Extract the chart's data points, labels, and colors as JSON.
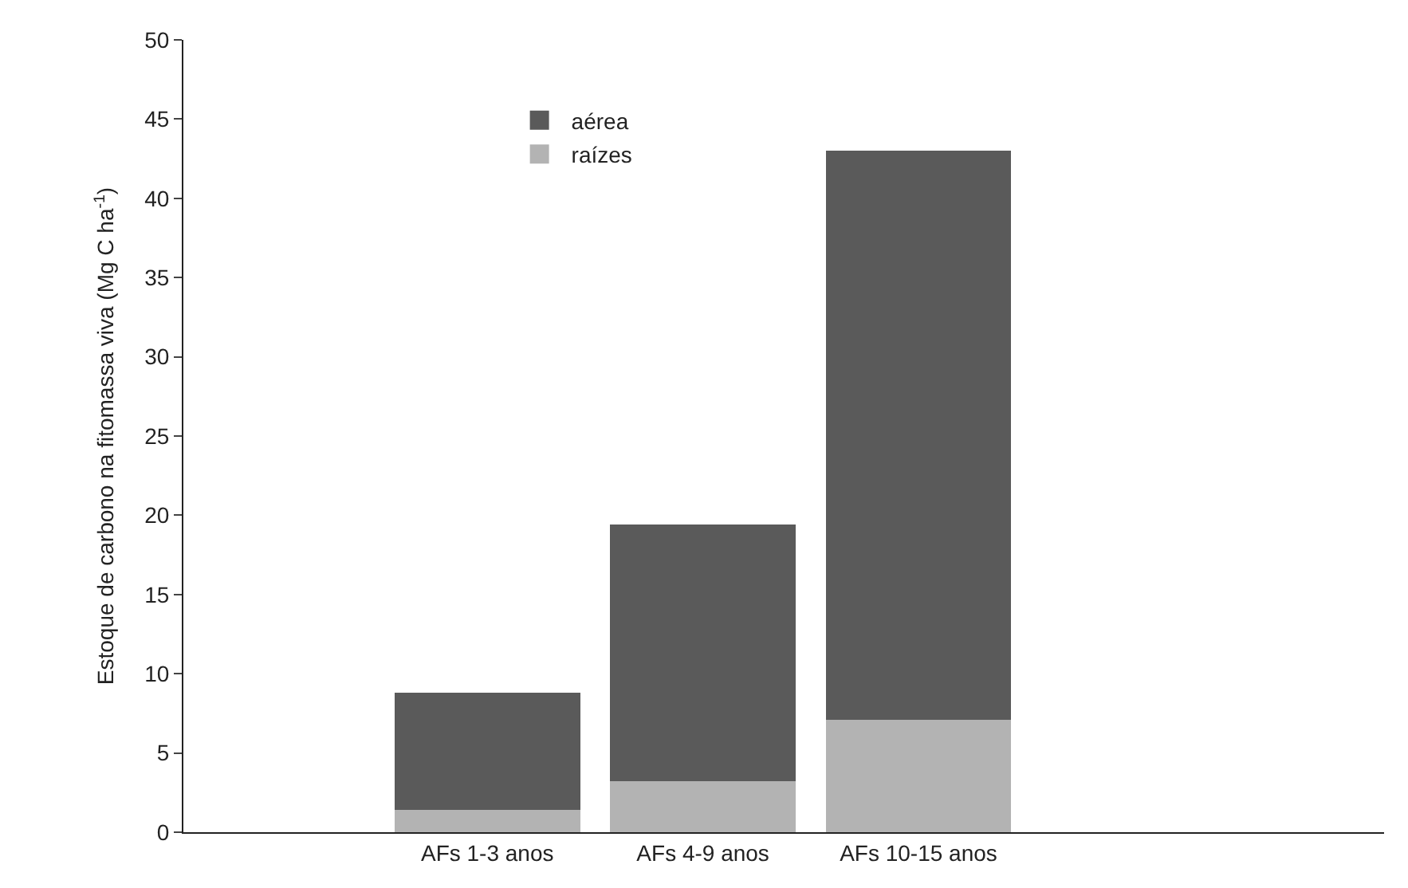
{
  "chart_data": {
    "type": "bar",
    "ylabel": "Estoque de carbono na fitomassa viva (Mg C ha$^{-1}$)",
    "categories": [
      "AFs 1-3 anos",
      "AFs 4-9 anos",
      "AFs 10-15 anos"
    ],
    "stacked": true,
    "series": [
      {
        "name": "raízes",
        "color": "#b3b3b3",
        "values": [
          1.4,
          3.2,
          7.1
        ]
      },
      {
        "name": "aérea",
        "color": "#5a5a5a",
        "values": [
          7.4,
          16.2,
          35.9
        ]
      }
    ],
    "ylim": [
      0,
      50
    ],
    "yticks": [
      0,
      5,
      10,
      15,
      20,
      25,
      30,
      35,
      40,
      45,
      50
    ],
    "legend": "top left"
  }
}
